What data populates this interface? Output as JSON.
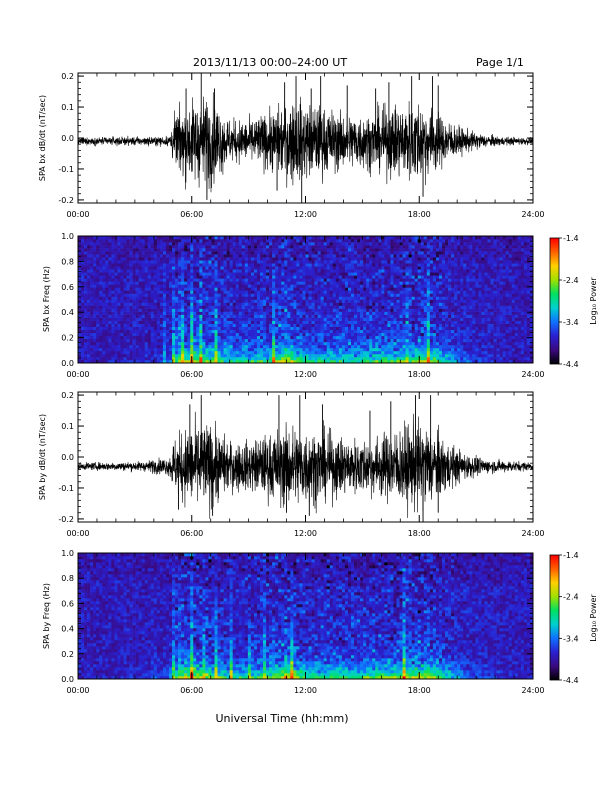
{
  "header": {
    "title": "2013/11/13  00:00–24:00 UT",
    "page": "Page 1/1"
  },
  "xlabel": "Universal Time (hh:mm)",
  "colors": {
    "trace": "#000000",
    "colorbar_stops": [
      "#000000",
      "#3a0a80",
      "#2a20d0",
      "#1070ff",
      "#00d0d0",
      "#00e060",
      "#a0e000",
      "#ffd000",
      "#ff6000",
      "#ff0000"
    ]
  },
  "chart_data": [
    {
      "type": "line",
      "ylabel": "SPA bx dB/dt (nT/sec)",
      "xlim": [
        0,
        24
      ],
      "ylim": [
        -0.21,
        0.21
      ],
      "x_ticks": [
        "00:00",
        "06:00",
        "12:00",
        "18:00",
        "24:00"
      ],
      "y_ticks": [
        "-0.2",
        "-0.1",
        "0.0",
        "0.1",
        "0.2"
      ],
      "y_tick_values": [
        -0.2,
        -0.1,
        0.0,
        0.1,
        0.2
      ],
      "baseline": -0.01,
      "envelope": [
        [
          0.0,
          0.01
        ],
        [
          2.0,
          0.012
        ],
        [
          4.0,
          0.012
        ],
        [
          4.8,
          0.015
        ],
        [
          5.0,
          0.06
        ],
        [
          5.5,
          0.1
        ],
        [
          6.2,
          0.12
        ],
        [
          7.0,
          0.13
        ],
        [
          8.0,
          0.06
        ],
        [
          9.0,
          0.06
        ],
        [
          10.0,
          0.08
        ],
        [
          10.7,
          0.1
        ],
        [
          11.2,
          0.12
        ],
        [
          12.0,
          0.11
        ],
        [
          12.7,
          0.1
        ],
        [
          14.0,
          0.08
        ],
        [
          15.5,
          0.08
        ],
        [
          16.5,
          0.1
        ],
        [
          18.0,
          0.12
        ],
        [
          18.5,
          0.1
        ],
        [
          19.5,
          0.06
        ],
        [
          20.3,
          0.035
        ],
        [
          21.5,
          0.018
        ],
        [
          22.5,
          0.012
        ],
        [
          24.0,
          0.01
        ]
      ],
      "spikes": [
        [
          5.7,
          0.16
        ],
        [
          6.5,
          0.21
        ],
        [
          6.8,
          -0.2
        ],
        [
          7.2,
          0.16
        ],
        [
          10.5,
          -0.17
        ],
        [
          10.9,
          0.18
        ],
        [
          11.5,
          0.2
        ],
        [
          11.8,
          -0.21
        ],
        [
          12.3,
          0.16
        ],
        [
          12.8,
          0.2
        ],
        [
          14.2,
          0.17
        ],
        [
          15.7,
          0.16
        ],
        [
          16.4,
          0.18
        ],
        [
          17.6,
          0.2
        ],
        [
          18.2,
          -0.19
        ],
        [
          18.7,
          0.2
        ],
        [
          19.0,
          0.17
        ]
      ]
    },
    {
      "type": "heatmap",
      "ylabel": "SPA bx Freq (Hz)",
      "xlim": [
        0,
        24
      ],
      "ylim": [
        0,
        1.0
      ],
      "x_ticks": [
        "00:00",
        "06:00",
        "12:00",
        "18:00",
        "24:00"
      ],
      "y_ticks": [
        "0.0",
        "0.2",
        "0.4",
        "0.6",
        "0.8",
        "1.0"
      ],
      "y_tick_values": [
        0.0,
        0.2,
        0.4,
        0.6,
        0.8,
        1.0
      ],
      "colorbar_label": "Log₁₀ Power",
      "colorbar_ticks": [
        "-1.4",
        "-2.4",
        "-3.4",
        "-4.4"
      ],
      "colorbar_tick_values": [
        -1.4,
        -2.4,
        -3.4,
        -4.4
      ],
      "crange": [
        -4.4,
        -1.4
      ],
      "activity": [
        [
          0.0,
          0.0
        ],
        [
          4.0,
          0.05
        ],
        [
          4.8,
          0.1
        ],
        [
          5.0,
          0.55
        ],
        [
          5.5,
          0.7
        ],
        [
          6.2,
          0.75
        ],
        [
          7.0,
          0.7
        ],
        [
          8.0,
          0.45
        ],
        [
          9.0,
          0.5
        ],
        [
          10.0,
          0.6
        ],
        [
          10.8,
          0.8
        ],
        [
          11.5,
          0.75
        ],
        [
          12.0,
          0.55
        ],
        [
          13.0,
          0.55
        ],
        [
          14.0,
          0.55
        ],
        [
          15.0,
          0.55
        ],
        [
          16.0,
          0.65
        ],
        [
          17.0,
          0.7
        ],
        [
          18.0,
          0.8
        ],
        [
          18.8,
          0.7
        ],
        [
          19.5,
          0.45
        ],
        [
          20.5,
          0.2
        ],
        [
          22.0,
          0.05
        ],
        [
          24.0,
          0.0
        ]
      ],
      "columns": [
        4.6,
        5.0,
        5.3,
        5.5,
        6.0,
        6.5,
        7.3,
        8.0,
        8.8,
        9.6,
        10.3,
        10.9,
        11.2,
        17.3,
        18.5
      ]
    },
    {
      "type": "line",
      "ylabel": "SPA by dB/dt (nT/sec)",
      "xlim": [
        0,
        24
      ],
      "ylim": [
        -0.21,
        0.21
      ],
      "x_ticks": [
        "00:00",
        "06:00",
        "12:00",
        "18:00",
        "24:00"
      ],
      "y_ticks": [
        "-0.2",
        "-0.1",
        "0.0",
        "0.1",
        "0.2"
      ],
      "y_tick_values": [
        -0.2,
        -0.1,
        0.0,
        0.1,
        0.2
      ],
      "baseline": -0.03,
      "envelope": [
        [
          0.0,
          0.01
        ],
        [
          2.0,
          0.012
        ],
        [
          3.5,
          0.014
        ],
        [
          4.0,
          0.02
        ],
        [
          4.8,
          0.025
        ],
        [
          5.0,
          0.07
        ],
        [
          5.5,
          0.1
        ],
        [
          6.2,
          0.12
        ],
        [
          7.0,
          0.12
        ],
        [
          8.0,
          0.07
        ],
        [
          9.0,
          0.07
        ],
        [
          10.0,
          0.09
        ],
        [
          10.7,
          0.11
        ],
        [
          11.3,
          0.12
        ],
        [
          12.0,
          0.11
        ],
        [
          13.0,
          0.1
        ],
        [
          14.0,
          0.08
        ],
        [
          15.5,
          0.08
        ],
        [
          16.5,
          0.1
        ],
        [
          18.0,
          0.13
        ],
        [
          18.6,
          0.11
        ],
        [
          19.5,
          0.07
        ],
        [
          20.3,
          0.04
        ],
        [
          21.5,
          0.02
        ],
        [
          24.0,
          0.012
        ]
      ],
      "spikes": [
        [
          5.3,
          -0.17
        ],
        [
          5.9,
          0.17
        ],
        [
          6.5,
          0.2
        ],
        [
          7.1,
          -0.19
        ],
        [
          10.6,
          0.2
        ],
        [
          11.0,
          -0.18
        ],
        [
          11.7,
          0.2
        ],
        [
          12.2,
          -0.19
        ],
        [
          12.9,
          0.17
        ],
        [
          15.4,
          0.15
        ],
        [
          16.5,
          0.18
        ],
        [
          17.8,
          0.2
        ],
        [
          18.2,
          -0.21
        ],
        [
          18.6,
          0.2
        ],
        [
          19.0,
          -0.18
        ]
      ]
    },
    {
      "type": "heatmap",
      "ylabel": "SPA by Freq (Hz)",
      "xlim": [
        0,
        24
      ],
      "ylim": [
        0,
        1.0
      ],
      "x_ticks": [
        "00:00",
        "06:00",
        "12:00",
        "18:00",
        "24:00"
      ],
      "y_ticks": [
        "0.0",
        "0.2",
        "0.4",
        "0.6",
        "0.8",
        "1.0"
      ],
      "y_tick_values": [
        0.0,
        0.2,
        0.4,
        0.6,
        0.8,
        1.0
      ],
      "colorbar_label": "Log₁₀ Power",
      "colorbar_ticks": [
        "-1.4",
        "-2.4",
        "-3.4",
        "-4.4"
      ],
      "colorbar_tick_values": [
        -1.4,
        -2.4,
        -3.4,
        -4.4
      ],
      "crange": [
        -4.4,
        -1.4
      ],
      "activity": [
        [
          0.0,
          0.0
        ],
        [
          4.0,
          0.08
        ],
        [
          4.8,
          0.15
        ],
        [
          5.0,
          0.6
        ],
        [
          5.5,
          0.75
        ],
        [
          6.2,
          0.8
        ],
        [
          7.0,
          0.75
        ],
        [
          8.0,
          0.5
        ],
        [
          9.0,
          0.55
        ],
        [
          10.0,
          0.65
        ],
        [
          10.8,
          0.85
        ],
        [
          11.5,
          0.8
        ],
        [
          12.0,
          0.6
        ],
        [
          13.0,
          0.6
        ],
        [
          14.0,
          0.6
        ],
        [
          15.0,
          0.6
        ],
        [
          16.0,
          0.7
        ],
        [
          17.0,
          0.75
        ],
        [
          18.0,
          0.85
        ],
        [
          18.8,
          0.75
        ],
        [
          19.5,
          0.5
        ],
        [
          20.5,
          0.25
        ],
        [
          22.0,
          0.08
        ],
        [
          24.0,
          0.0
        ]
      ],
      "columns": [
        4.0,
        5.0,
        5.3,
        5.6,
        6.0,
        6.6,
        7.3,
        8.1,
        9.0,
        9.8,
        10.4,
        10.9,
        11.3,
        17.2,
        18.4
      ]
    }
  ]
}
